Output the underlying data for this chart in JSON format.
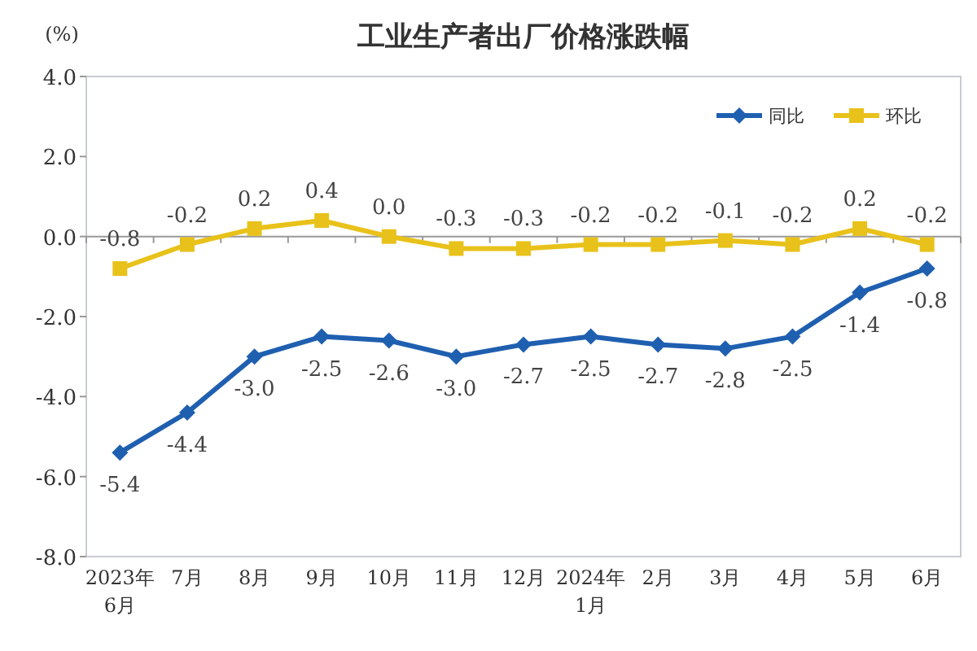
{
  "chart_data": {
    "type": "line",
    "title": "工业生产者出厂价格涨跌幅",
    "ylabel": "(%)",
    "categories": [
      "2023年\n6月",
      "7月",
      "8月",
      "9月",
      "10月",
      "11月",
      "12月",
      "2024年\n1月",
      "2月",
      "3月",
      "4月",
      "5月",
      "6月"
    ],
    "series": [
      {
        "name": "同比",
        "color": "#1f5fb0",
        "marker": "diamond",
        "values": [
          -5.4,
          -4.4,
          -3.0,
          -2.5,
          -2.6,
          -3.0,
          -2.7,
          -2.5,
          -2.7,
          -2.8,
          -2.5,
          -1.4,
          -0.8
        ],
        "value_labels": [
          "-5.4",
          "-4.4",
          "-3.0",
          "-2.5",
          "-2.6",
          "-3.0",
          "-2.7",
          "-2.5",
          "-2.7",
          "-2.8",
          "-2.5",
          "-1.4",
          "-0.8"
        ]
      },
      {
        "name": "环比",
        "color": "#e8c21a",
        "marker": "square",
        "values": [
          -0.8,
          -0.2,
          0.2,
          0.4,
          0.0,
          -0.3,
          -0.3,
          -0.2,
          -0.2,
          -0.1,
          -0.2,
          0.2,
          -0.2
        ],
        "value_labels": [
          "-0.8",
          "-0.2",
          "0.2",
          "0.4",
          "0.0",
          "-0.3",
          "-0.3",
          "-0.2",
          "-0.2",
          "-0.1",
          "-0.2",
          "0.2",
          "-0.2"
        ]
      }
    ],
    "ylim": [
      -8.0,
      4.0
    ],
    "yticks": [
      {
        "value": -8,
        "label": "-8.0"
      },
      {
        "value": -6,
        "label": "-6.0"
      },
      {
        "value": -4,
        "label": "-4.0"
      },
      {
        "value": -2,
        "label": "-2.0"
      },
      {
        "value": 0,
        "label": "0.0"
      },
      {
        "value": 2,
        "label": "2.0"
      },
      {
        "value": 4,
        "label": "4.0"
      }
    ],
    "legend": "top right",
    "line_style": "solid"
  }
}
